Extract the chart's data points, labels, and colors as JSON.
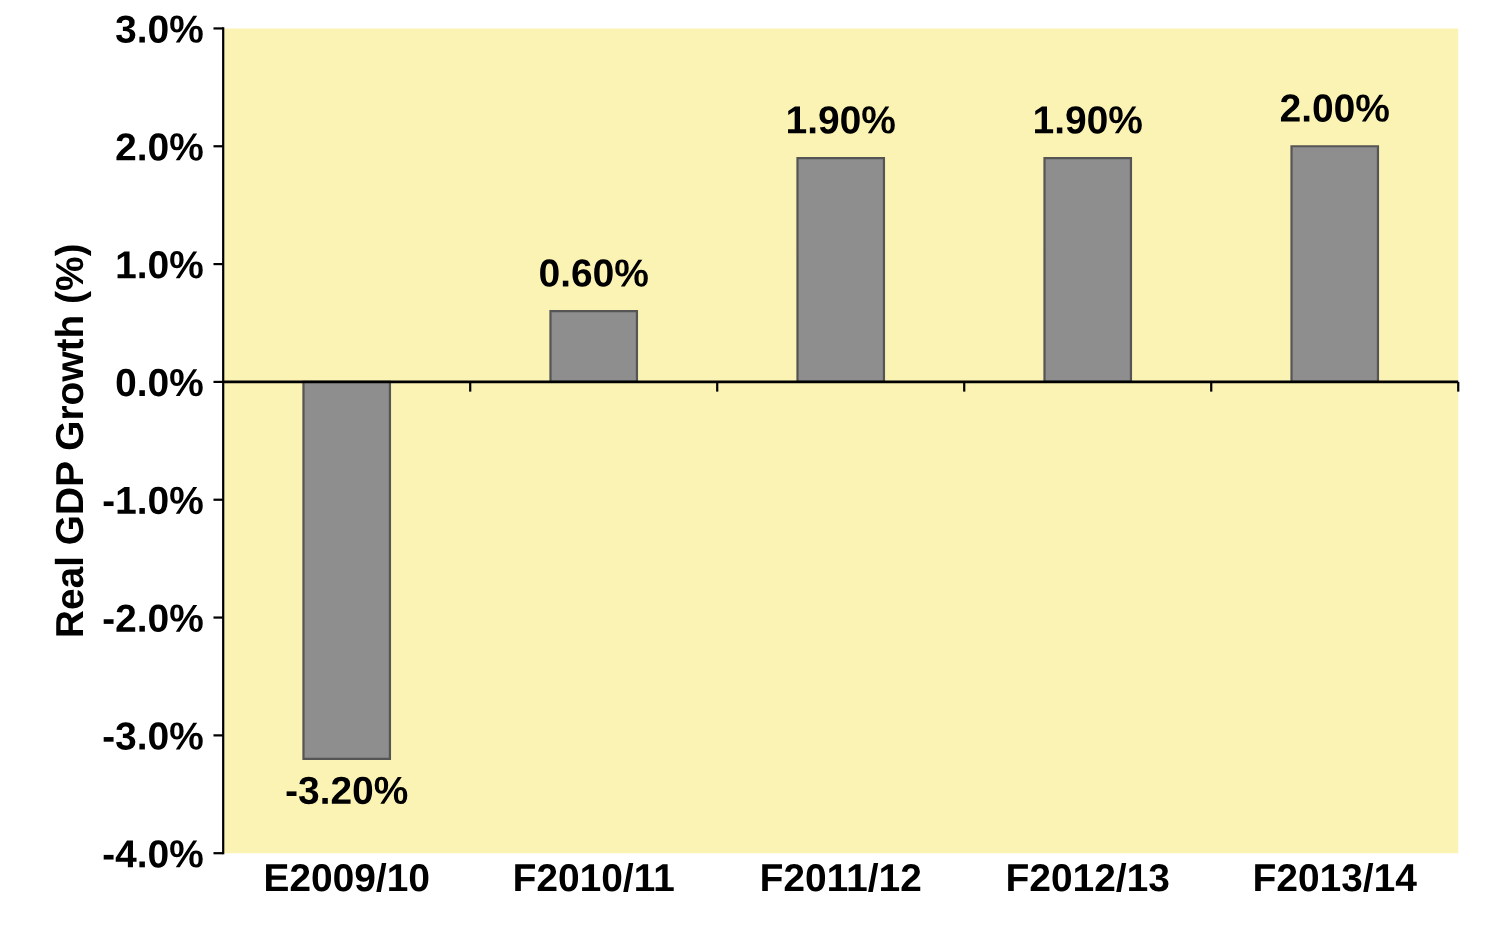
{
  "chart_data": {
    "type": "bar",
    "ylabel": "Real GDP Growth (%)",
    "categories": [
      "E2009/10",
      "F2010/11",
      "F2011/12",
      "F2012/13",
      "F2013/14"
    ],
    "values": [
      -3.2,
      0.6,
      1.9,
      1.9,
      2.0
    ],
    "value_labels": [
      "-3.20%",
      "0.60%",
      "1.90%",
      "1.90%",
      "2.00%"
    ],
    "color": "#8e8e8e",
    "ylim": [
      -4,
      3
    ],
    "yticks": [
      {
        "value": -4,
        "label": "-4.0%"
      },
      {
        "value": -3,
        "label": "-3.0%"
      },
      {
        "value": -2,
        "label": "-2.0%"
      },
      {
        "value": -1,
        "label": "-1.0%"
      },
      {
        "value": 0,
        "label": "0.0%"
      },
      {
        "value": 1,
        "label": "1.0%"
      },
      {
        "value": 2,
        "label": "2.0%"
      },
      {
        "value": 3,
        "label": "3.0%"
      }
    ],
    "ref_lines": [
      {
        "axis": "y",
        "value": 0,
        "color": "#000000"
      }
    ],
    "grid": false,
    "legend": false
  }
}
